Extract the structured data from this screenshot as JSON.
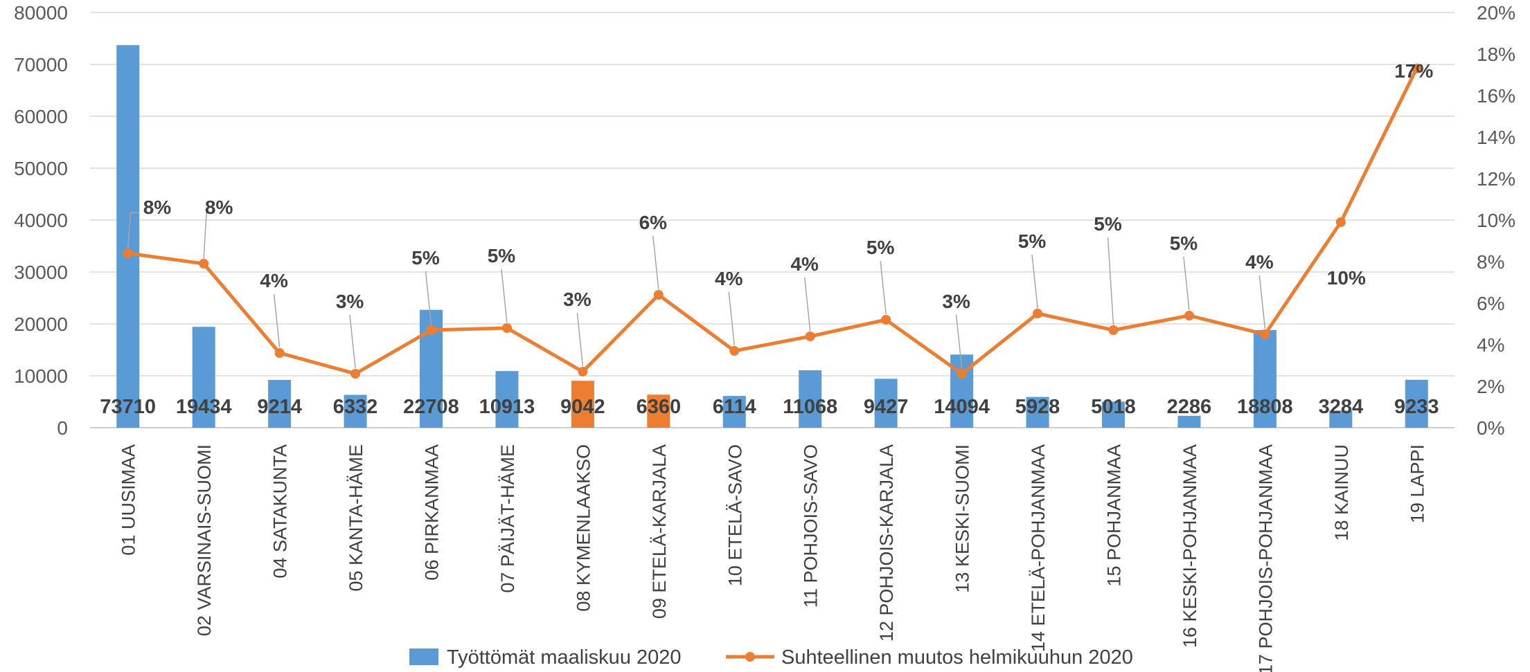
{
  "chart_data": {
    "type": "bar",
    "categories": [
      "01 UUSIMAA",
      "02 VARSINAIS-SUOMI",
      "04 SATAKUNTA",
      "05 KANTA-HÄME",
      "06 PIRKANMAA",
      "07 PÄIJÄT-HÄME",
      "08 KYMENLAAKSO",
      "09 ETELÄ-KARJALA",
      "10 ETELÄ-SAVO",
      "11 POHJOIS-SAVO",
      "12 POHJOIS-KARJALA",
      "13 KESKI-SUOMI",
      "14 ETELÄ-POHJANMAA",
      "15 POHJANMAA",
      "16 KESKI-POHJANMAA",
      "17 POHJOIS-POHJANMAA",
      "18 KAINUU",
      "19 LAPPI"
    ],
    "series": [
      {
        "name": "Työttömät maaliskuu 2020",
        "type": "bar",
        "axis": "left",
        "color": "#5B9BD5",
        "highlight_color": "#ED7D31",
        "highlight_categories": [
          "08 KYMENLAAKSO",
          "09 ETELÄ-KARJALA"
        ],
        "values": [
          73710,
          19434,
          9214,
          6332,
          22708,
          10913,
          9042,
          6360,
          6114,
          11068,
          9427,
          14094,
          5928,
          5018,
          2286,
          18808,
          3284,
          9233
        ],
        "labels": [
          "73710",
          "19434",
          "9214",
          "6332",
          "22708",
          "10913",
          "9042",
          "6360",
          "6114",
          "11068",
          "9427",
          "14094",
          "5928",
          "5018",
          "2286",
          "18808",
          "3284",
          "9233"
        ]
      },
      {
        "name": "Suhteellinen muutos helmikuuhun 2020",
        "type": "line",
        "axis": "right",
        "color": "#ED7D31",
        "values": [
          8.4,
          7.9,
          3.6,
          2.6,
          4.7,
          4.8,
          2.7,
          6.4,
          3.7,
          4.4,
          5.2,
          2.6,
          5.5,
          4.7,
          5.4,
          4.5,
          9.9,
          17.3
        ],
        "labels": [
          "8%",
          "8%",
          "4%",
          "3%",
          "5%",
          "5%",
          "3%",
          "6%",
          "4%",
          "4%",
          "5%",
          "3%",
          "5%",
          "5%",
          "5%",
          "4%",
          "10%",
          "17%"
        ]
      }
    ],
    "y_left": {
      "min": 0,
      "max": 80000,
      "ticks": [
        "0",
        "10000",
        "20000",
        "30000",
        "40000",
        "50000",
        "60000",
        "70000",
        "80000"
      ]
    },
    "y_right": {
      "min": 0,
      "max": 20,
      "unit": "%",
      "ticks": [
        "0%",
        "2%",
        "4%",
        "6%",
        "8%",
        "10%",
        "12%",
        "14%",
        "16%",
        "18%",
        "20%"
      ]
    },
    "grid": true,
    "legend": "bottom"
  }
}
